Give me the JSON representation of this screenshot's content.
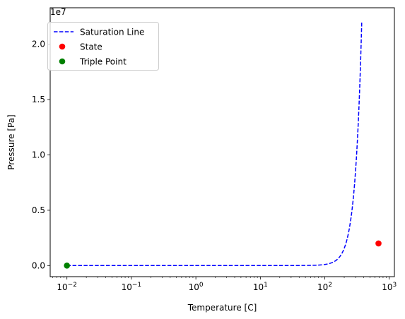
{
  "chart_data": {
    "type": "line",
    "xlabel": "Temperature [C]",
    "ylabel": "Pressure [Pa]",
    "y_offset_label": "1e7",
    "x_scale": "log",
    "y_scale": "linear",
    "xlim": [
      0.0055,
      1200
    ],
    "ylim": [
      -1000000,
      23300000
    ],
    "x_ticks": [
      {
        "value": 0.01,
        "base": "10",
        "exp": "−2"
      },
      {
        "value": 0.1,
        "base": "10",
        "exp": "−1"
      },
      {
        "value": 1,
        "base": "10",
        "exp": "0"
      },
      {
        "value": 10,
        "base": "10",
        "exp": "1"
      },
      {
        "value": 100,
        "base": "10",
        "exp": "2"
      },
      {
        "value": 1000,
        "base": "10",
        "exp": "3"
      }
    ],
    "y_ticks": [
      {
        "value": 0,
        "label": "0.0"
      },
      {
        "value": 5000000,
        "label": "0.5"
      },
      {
        "value": 10000000,
        "label": "1.0"
      },
      {
        "value": 15000000,
        "label": "1.5"
      },
      {
        "value": 20000000,
        "label": "2.0"
      }
    ],
    "grid": false,
    "legend_position": "top-left",
    "series": [
      {
        "name": "Saturation Line",
        "style": "dashed",
        "color": "#0000ff",
        "points": [
          [
            0.01,
            611.7
          ],
          [
            0.1,
            615.7
          ],
          [
            1,
            657.1
          ],
          [
            5,
            872.6
          ],
          [
            10,
            1228
          ],
          [
            20,
            2339
          ],
          [
            30,
            4247
          ],
          [
            40,
            7384
          ],
          [
            50,
            12350
          ],
          [
            60,
            19950
          ],
          [
            70,
            31200
          ],
          [
            80,
            47410
          ],
          [
            90,
            70180
          ],
          [
            100,
            101420
          ],
          [
            110,
            143380
          ],
          [
            120,
            198670
          ],
          [
            130,
            270280
          ],
          [
            140,
            361540
          ],
          [
            150,
            476160
          ],
          [
            160,
            618230
          ],
          [
            170,
            792180
          ],
          [
            180,
            1002800
          ],
          [
            190,
            1255200
          ],
          [
            200,
            1554900
          ],
          [
            210,
            1907700
          ],
          [
            220,
            2319600
          ],
          [
            230,
            2797100
          ],
          [
            240,
            3346900
          ],
          [
            250,
            3976200
          ],
          [
            260,
            4692300
          ],
          [
            270,
            5503000
          ],
          [
            280,
            6416600
          ],
          [
            290,
            7441800
          ],
          [
            300,
            8587900
          ],
          [
            310,
            9865100
          ],
          [
            320,
            11284000
          ],
          [
            330,
            12858000
          ],
          [
            340,
            14601000
          ],
          [
            350,
            16529000
          ],
          [
            360,
            18666000
          ],
          [
            370,
            21044000
          ],
          [
            374,
            22064000
          ]
        ]
      },
      {
        "name": "State",
        "style": "marker",
        "color": "#ff0000",
        "points": [
          [
            680,
            2000000
          ]
        ]
      },
      {
        "name": "Triple Point",
        "style": "marker",
        "color": "#008000",
        "points": [
          [
            0.01,
            611.7
          ]
        ]
      }
    ]
  }
}
